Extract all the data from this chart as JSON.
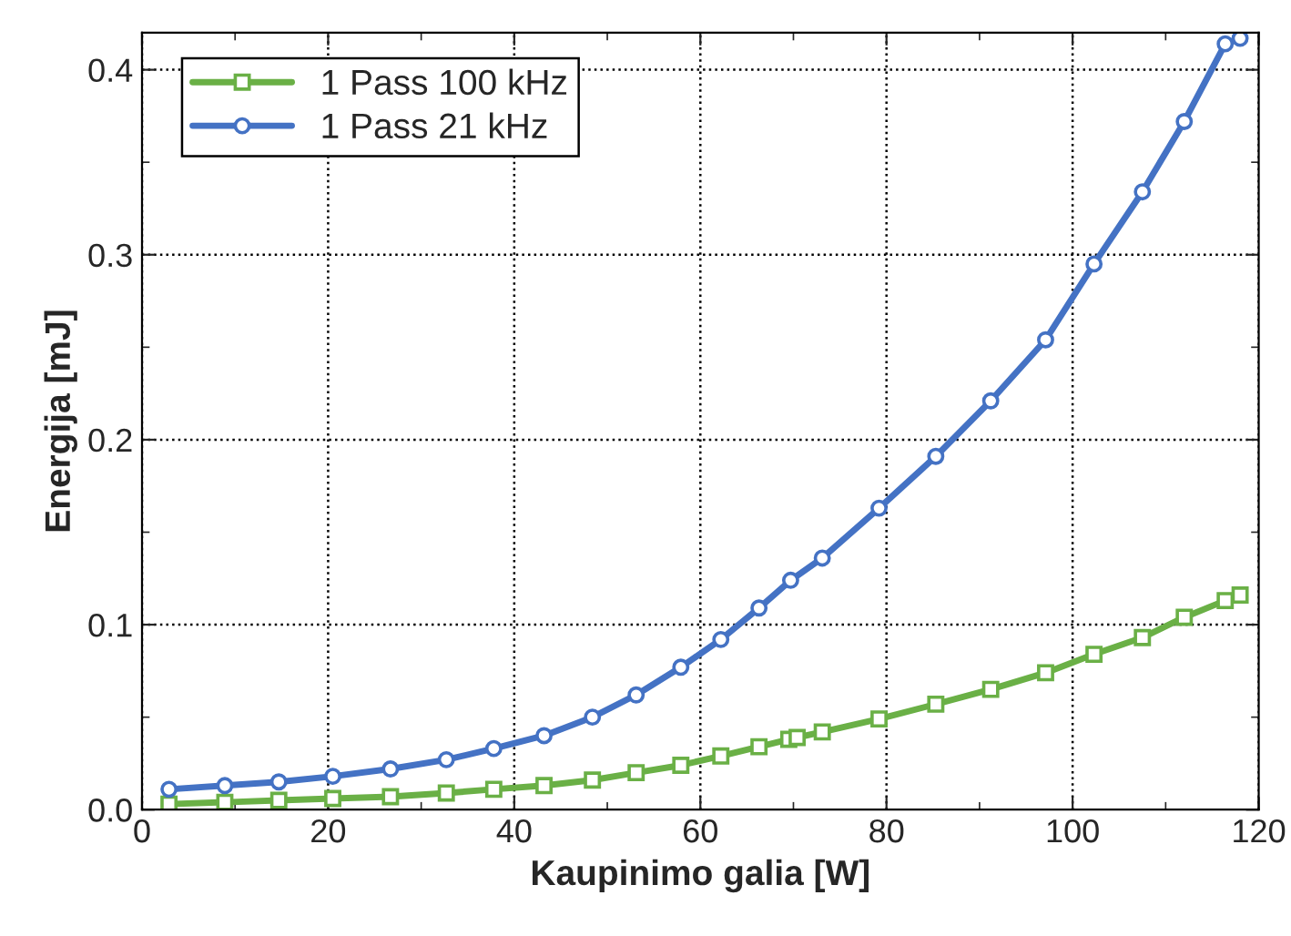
{
  "chart_data": {
    "type": "line",
    "xlabel": "Kaupinimo galia [W]",
    "ylabel": "Energija [mJ]",
    "xlim": [
      0,
      120
    ],
    "xticks": [
      0,
      20,
      40,
      60,
      80,
      100,
      120
    ],
    "ylim": [
      0,
      0.42
    ],
    "yticks": [
      {
        "value": 0,
        "label": "0.0"
      },
      0.1,
      0.2,
      0.3,
      0.4
    ],
    "grid": true,
    "legend": "top left",
    "series": [
      {
        "name": "1 Pass 100 kHz",
        "color": "#6ab046",
        "marker": "square",
        "x": [
          2.9,
          8.9,
          14.7,
          20.5,
          26.7,
          32.7,
          37.8,
          43.2,
          48.4,
          53.1,
          57.9,
          62.2,
          66.3,
          69.5,
          70.4,
          73.1,
          79.2,
          85.3,
          91.2,
          97.1,
          102.3,
          107.5,
          112.0,
          116.4,
          118.0
        ],
        "values": [
          0.003,
          0.004,
          0.005,
          0.006,
          0.007,
          0.009,
          0.011,
          0.013,
          0.016,
          0.02,
          0.024,
          0.029,
          0.034,
          0.038,
          0.039,
          0.042,
          0.049,
          0.057,
          0.065,
          0.074,
          0.084,
          0.093,
          0.104,
          0.113,
          0.116
        ]
      },
      {
        "name": "1 Pass 21 kHz",
        "color": "#4472c4",
        "marker": "circle",
        "x": [
          2.9,
          8.9,
          14.7,
          20.5,
          26.7,
          32.7,
          37.8,
          43.2,
          48.4,
          53.1,
          57.9,
          62.2,
          66.3,
          69.7,
          73.1,
          79.2,
          85.3,
          91.2,
          97.1,
          102.3,
          107.5,
          112.0,
          116.4,
          118.0
        ],
        "values": [
          0.011,
          0.013,
          0.015,
          0.018,
          0.022,
          0.027,
          0.033,
          0.04,
          0.05,
          0.062,
          0.077,
          0.092,
          0.109,
          0.124,
          0.136,
          0.163,
          0.191,
          0.221,
          0.254,
          0.295,
          0.334,
          0.372,
          0.414,
          0.417
        ]
      }
    ]
  }
}
